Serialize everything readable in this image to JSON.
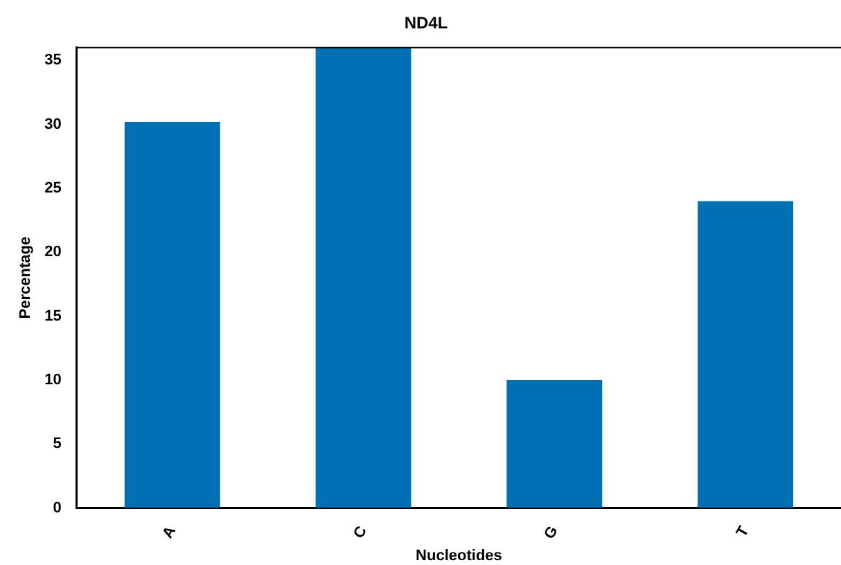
{
  "chart_data": {
    "type": "bar",
    "title": "ND4L",
    "xlabel": "Nucleotides",
    "ylabel": "Percentage",
    "categories": [
      "A",
      "C",
      "G",
      "T"
    ],
    "values": [
      30.2,
      36.0,
      10.0,
      24.0
    ],
    "color": "#0070b4",
    "ylim": [
      0,
      36
    ],
    "yticks": [
      0,
      5,
      10,
      15,
      20,
      25,
      30,
      35
    ],
    "grid": false,
    "legend": false
  }
}
